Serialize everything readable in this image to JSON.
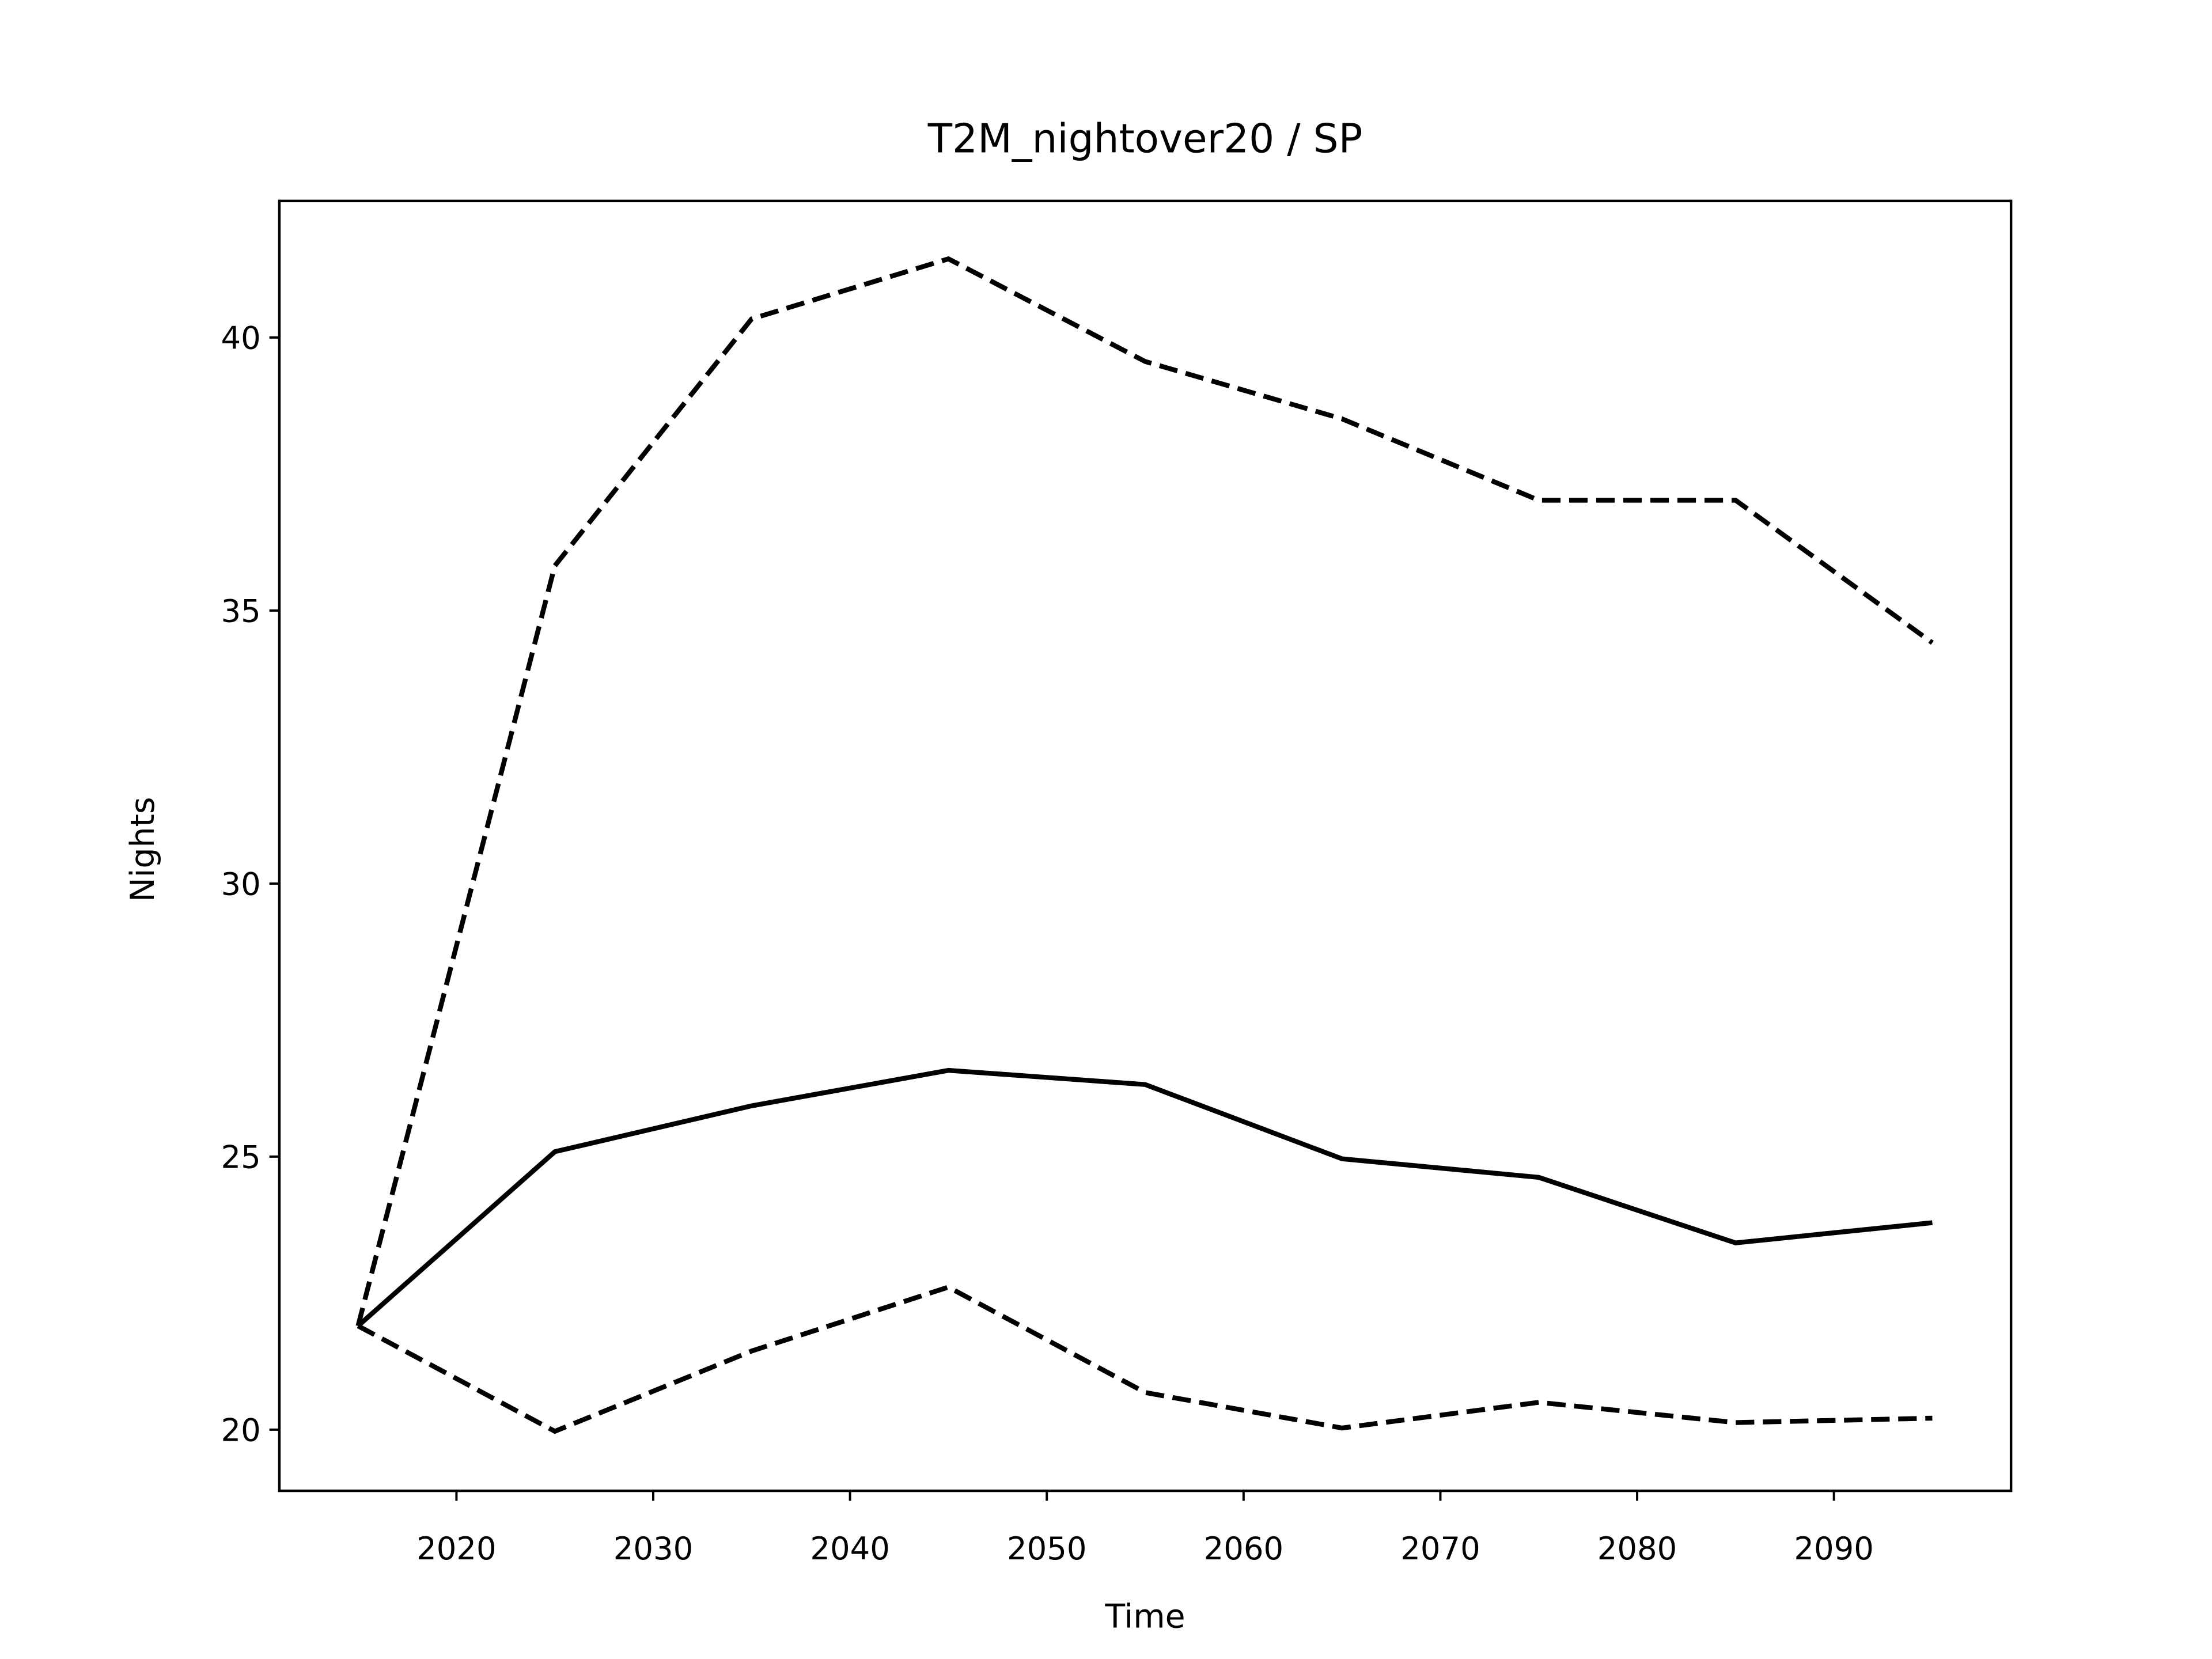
{
  "chart_data": {
    "type": "line",
    "title": "T2M_nightover20 / SP",
    "xlabel": "Time",
    "ylabel": "Nights",
    "x": [
      2015,
      2025,
      2035,
      2045,
      2055,
      2065,
      2075,
      2085,
      2095
    ],
    "series": [
      {
        "color": "#000000",
        "dashed": false,
        "values": [
          21.9,
          25.09,
          25.93,
          26.58,
          26.32,
          24.96,
          24.62,
          23.42,
          23.79
        ]
      },
      {
        "color": "#000000",
        "dashed": true,
        "values": [
          21.9,
          35.82,
          40.34,
          41.44,
          39.56,
          38.51,
          37.02,
          37.02,
          34.41
        ]
      },
      {
        "color": "#000000",
        "dashed": true,
        "values": [
          21.9,
          19.97,
          21.44,
          22.61,
          20.68,
          20.03,
          20.5,
          20.13,
          20.21
        ]
      }
    ],
    "xlim": [
      2011,
      2099
    ],
    "ylim": [
      18.88,
      42.5
    ],
    "xticks": [
      2020,
      2030,
      2040,
      2050,
      2060,
      2070,
      2080,
      2090
    ],
    "yticks": [
      20,
      25,
      30,
      35,
      40
    ],
    "grid": false
  }
}
